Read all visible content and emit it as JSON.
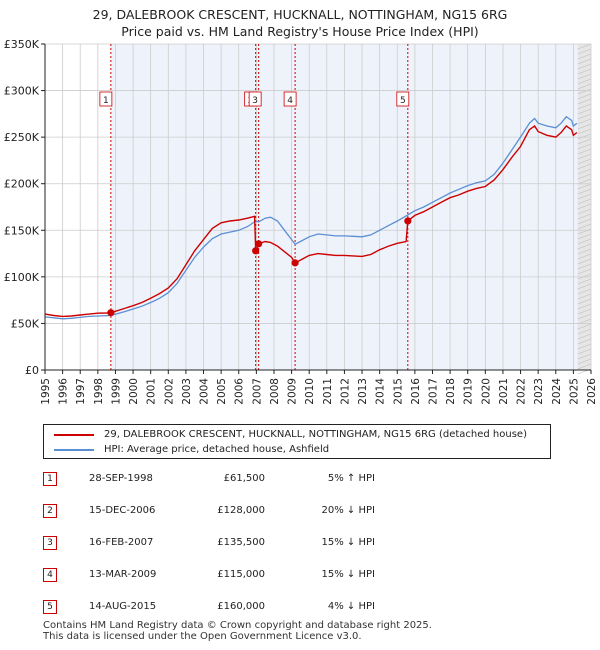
{
  "title": {
    "line1": "29, DALEBROOK CRESCENT, HUCKNALL, NOTTINGHAM, NG15 6RG",
    "line2": "Price paid vs. HM Land Registry's House Price Index (HPI)"
  },
  "chart_data": {
    "type": "line",
    "xlim": [
      1995,
      2026
    ],
    "ylim": [
      0,
      350000
    ],
    "y_ticks": [
      {
        "value": 0,
        "label": "£0"
      },
      {
        "value": 50000,
        "label": "£50K"
      },
      {
        "value": 100000,
        "label": "£100K"
      },
      {
        "value": 150000,
        "label": "£150K"
      },
      {
        "value": 200000,
        "label": "£200K"
      },
      {
        "value": 250000,
        "label": "£250K"
      },
      {
        "value": 300000,
        "label": "£300K"
      },
      {
        "value": 350000,
        "label": "£350K"
      }
    ],
    "x_ticks": [
      "1995",
      "1996",
      "1997",
      "1998",
      "1999",
      "2000",
      "2001",
      "2002",
      "2003",
      "2004",
      "2005",
      "2006",
      "2007",
      "2008",
      "2009",
      "2010",
      "2011",
      "2012",
      "2013",
      "2014",
      "2015",
      "2016",
      "2017",
      "2018",
      "2019",
      "2020",
      "2021",
      "2022",
      "2023",
      "2024",
      "2025",
      "2026"
    ],
    "future_start": 2025.25,
    "colors": {
      "property": "#cc0000",
      "hpi": "#5b8fd4",
      "shade": "#dfe8f6",
      "grid": "#cccccc",
      "bg": "#eef3fb"
    },
    "series": [
      {
        "name": "29, DALEBROOK CRESCENT, HUCKNALL, NOTTINGHAM, NG15 6RG (detached house)",
        "key": "property",
        "points": [
          [
            1995.0,
            60000
          ],
          [
            1995.5,
            58500
          ],
          [
            1996.0,
            57500
          ],
          [
            1996.5,
            58000
          ],
          [
            1997.0,
            59000
          ],
          [
            1997.5,
            60000
          ],
          [
            1998.0,
            61000
          ],
          [
            1998.5,
            61200
          ],
          [
            1998.74,
            61500
          ],
          [
            1999.0,
            63000
          ],
          [
            1999.5,
            66000
          ],
          [
            2000.0,
            69000
          ],
          [
            2000.5,
            72500
          ],
          [
            2001.0,
            77000
          ],
          [
            2001.5,
            82000
          ],
          [
            2002.0,
            88000
          ],
          [
            2002.5,
            98000
          ],
          [
            2003.0,
            113000
          ],
          [
            2003.5,
            128000
          ],
          [
            2004.0,
            140000
          ],
          [
            2004.5,
            152000
          ],
          [
            2005.0,
            158000
          ],
          [
            2005.5,
            160000
          ],
          [
            2006.0,
            161000
          ],
          [
            2006.5,
            163000
          ],
          [
            2006.9,
            165000
          ],
          [
            2006.96,
            128000
          ],
          [
            2007.03,
            130000
          ],
          [
            2007.13,
            135500
          ],
          [
            2007.5,
            138000
          ],
          [
            2007.8,
            137000
          ],
          [
            2008.2,
            133000
          ],
          [
            2008.6,
            127000
          ],
          [
            2009.0,
            121000
          ],
          [
            2009.2,
            115000
          ],
          [
            2009.5,
            118000
          ],
          [
            2010.0,
            123000
          ],
          [
            2010.5,
            125000
          ],
          [
            2011.0,
            124000
          ],
          [
            2011.5,
            123000
          ],
          [
            2012.0,
            123000
          ],
          [
            2012.5,
            122500
          ],
          [
            2013.0,
            122000
          ],
          [
            2013.5,
            124000
          ],
          [
            2014.0,
            129000
          ],
          [
            2014.5,
            133000
          ],
          [
            2015.0,
            136000
          ],
          [
            2015.5,
            138000
          ],
          [
            2015.6,
            160000
          ],
          [
            2016.0,
            166000
          ],
          [
            2016.5,
            170000
          ],
          [
            2017.0,
            175000
          ],
          [
            2017.5,
            180000
          ],
          [
            2018.0,
            185000
          ],
          [
            2018.5,
            188000
          ],
          [
            2019.0,
            192000
          ],
          [
            2019.5,
            195000
          ],
          [
            2020.0,
            197000
          ],
          [
            2020.5,
            204000
          ],
          [
            2021.0,
            215000
          ],
          [
            2021.5,
            228000
          ],
          [
            2022.0,
            240000
          ],
          [
            2022.5,
            258000
          ],
          [
            2022.8,
            262000
          ],
          [
            2023.0,
            256000
          ],
          [
            2023.5,
            252000
          ],
          [
            2024.0,
            250000
          ],
          [
            2024.3,
            255000
          ],
          [
            2024.6,
            262000
          ],
          [
            2024.9,
            258000
          ],
          [
            2025.0,
            252000
          ],
          [
            2025.2,
            255000
          ]
        ]
      },
      {
        "name": "HPI: Average price, detached house, Ashfield",
        "key": "hpi",
        "points": [
          [
            1995.0,
            57000
          ],
          [
            1995.5,
            56000
          ],
          [
            1996.0,
            55000
          ],
          [
            1996.5,
            55500
          ],
          [
            1997.0,
            56500
          ],
          [
            1997.5,
            57500
          ],
          [
            1998.0,
            58000
          ],
          [
            1998.74,
            58500
          ],
          [
            1999.0,
            60000
          ],
          [
            1999.5,
            62500
          ],
          [
            2000.0,
            65500
          ],
          [
            2000.5,
            68500
          ],
          [
            2001.0,
            72500
          ],
          [
            2001.5,
            77000
          ],
          [
            2002.0,
            83000
          ],
          [
            2002.5,
            93000
          ],
          [
            2003.0,
            107000
          ],
          [
            2003.5,
            121000
          ],
          [
            2004.0,
            132000
          ],
          [
            2004.5,
            141000
          ],
          [
            2005.0,
            146000
          ],
          [
            2005.5,
            148000
          ],
          [
            2006.0,
            150000
          ],
          [
            2006.5,
            154000
          ],
          [
            2006.96,
            160000
          ],
          [
            2007.13,
            159000
          ],
          [
            2007.5,
            163000
          ],
          [
            2007.8,
            164000
          ],
          [
            2008.2,
            160000
          ],
          [
            2008.6,
            150000
          ],
          [
            2009.0,
            140000
          ],
          [
            2009.2,
            135000
          ],
          [
            2009.5,
            138000
          ],
          [
            2010.0,
            143000
          ],
          [
            2010.5,
            146000
          ],
          [
            2011.0,
            145000
          ],
          [
            2011.5,
            144000
          ],
          [
            2012.0,
            144000
          ],
          [
            2012.5,
            143500
          ],
          [
            2013.0,
            143000
          ],
          [
            2013.5,
            145000
          ],
          [
            2014.0,
            150000
          ],
          [
            2014.5,
            155000
          ],
          [
            2015.0,
            160000
          ],
          [
            2015.6,
            166500
          ],
          [
            2016.0,
            171000
          ],
          [
            2016.5,
            175000
          ],
          [
            2017.0,
            180000
          ],
          [
            2017.5,
            185000
          ],
          [
            2018.0,
            190000
          ],
          [
            2018.5,
            194000
          ],
          [
            2019.0,
            198000
          ],
          [
            2019.5,
            201000
          ],
          [
            2020.0,
            203000
          ],
          [
            2020.5,
            210000
          ],
          [
            2021.0,
            222000
          ],
          [
            2021.5,
            236000
          ],
          [
            2022.0,
            250000
          ],
          [
            2022.5,
            265000
          ],
          [
            2022.8,
            270000
          ],
          [
            2023.0,
            265000
          ],
          [
            2023.5,
            262000
          ],
          [
            2024.0,
            260000
          ],
          [
            2024.3,
            265000
          ],
          [
            2024.6,
            272000
          ],
          [
            2024.9,
            268000
          ],
          [
            2025.0,
            262000
          ],
          [
            2025.2,
            265000
          ]
        ]
      }
    ],
    "sales": [
      {
        "id": "1",
        "year": 1998.74,
        "price": 61500
      },
      {
        "id": "2",
        "year": 2006.96,
        "price": 128000
      },
      {
        "id": "3",
        "year": 2007.13,
        "price": 135500
      },
      {
        "id": "4",
        "year": 2009.2,
        "price": 115000
      },
      {
        "id": "5",
        "year": 2015.6,
        "price": 160000
      }
    ]
  },
  "legend": {
    "property_label": "29, DALEBROOK CRESCENT, HUCKNALL, NOTTINGHAM, NG15 6RG (detached house)",
    "hpi_label": "HPI: Average price, detached house, Ashfield"
  },
  "sales_table": [
    {
      "id": "1",
      "date": "28-SEP-1998",
      "price": "£61,500",
      "hpi": "5% ↑ HPI"
    },
    {
      "id": "2",
      "date": "15-DEC-2006",
      "price": "£128,000",
      "hpi": "20% ↓ HPI"
    },
    {
      "id": "3",
      "date": "16-FEB-2007",
      "price": "£135,500",
      "hpi": "15% ↓ HPI"
    },
    {
      "id": "4",
      "date": "13-MAR-2009",
      "price": "£115,000",
      "hpi": "15% ↓ HPI"
    },
    {
      "id": "5",
      "date": "14-AUG-2015",
      "price": "£160,000",
      "hpi": "4% ↓ HPI"
    }
  ],
  "footer": {
    "line1": "Contains HM Land Registry data © Crown copyright and database right 2025.",
    "line2": "This data is licensed under the Open Government Licence v3.0."
  }
}
